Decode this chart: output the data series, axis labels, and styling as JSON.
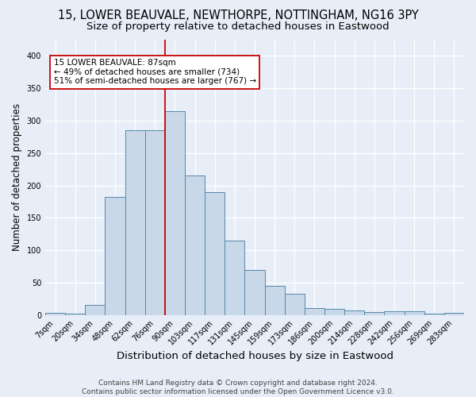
{
  "title1": "15, LOWER BEAUVALE, NEWTHORPE, NOTTINGHAM, NG16 3PY",
  "title2": "Size of property relative to detached houses in Eastwood",
  "xlabel": "Distribution of detached houses by size in Eastwood",
  "ylabel": "Number of detached properties",
  "categories": [
    "7sqm",
    "20sqm",
    "34sqm",
    "48sqm",
    "62sqm",
    "76sqm",
    "90sqm",
    "103sqm",
    "117sqm",
    "131sqm",
    "145sqm",
    "159sqm",
    "173sqm",
    "186sqm",
    "200sqm",
    "214sqm",
    "228sqm",
    "242sqm",
    "256sqm",
    "269sqm",
    "283sqm"
  ],
  "values": [
    3,
    2,
    15,
    182,
    285,
    285,
    315,
    215,
    190,
    115,
    70,
    45,
    33,
    11,
    9,
    7,
    4,
    6,
    6,
    2,
    3
  ],
  "bar_color": "#c8d8e8",
  "bar_edge_color": "#5588aa",
  "vline_x_index": 5.5,
  "vline_color": "#cc0000",
  "annotation_line1": "15 LOWER BEAUVALE: 87sqm",
  "annotation_line2": "← 49% of detached houses are smaller (734)",
  "annotation_line3": "51% of semi-detached houses are larger (767) →",
  "annotation_box_color": "white",
  "annotation_box_edge": "#cc0000",
  "footer": "Contains HM Land Registry data © Crown copyright and database right 2024.\nContains public sector information licensed under the Open Government Licence v3.0.",
  "background_color": "#e8eef8",
  "ylim": [
    0,
    425
  ],
  "title1_fontsize": 10.5,
  "title2_fontsize": 9.5,
  "xlabel_fontsize": 9.5,
  "ylabel_fontsize": 8.5,
  "footer_fontsize": 6.5,
  "tick_fontsize": 7.0
}
